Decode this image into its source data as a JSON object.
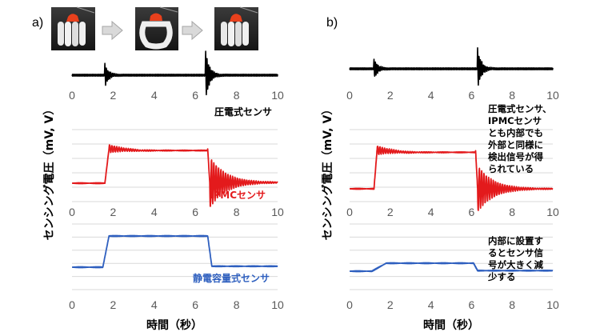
{
  "panels": [
    {
      "letter": "a)"
    },
    {
      "letter": "b)"
    }
  ],
  "ylabel": "センシング電圧（mV, V）",
  "xlabel": "時間（秒）",
  "annotations": {
    "b_top": [
      "圧電式センサ、",
      "IPMCセンサ",
      "とも内部でも",
      "外部と同様に",
      "検出信号が得",
      "られている"
    ],
    "b_bottom": [
      "内部に設置す",
      "るとセンサ信",
      "号が大きく減",
      "少する"
    ]
  },
  "colors": {
    "black": "#000000",
    "red": "#e31a1c",
    "blue": "#2e5fbf",
    "grid": "#d9d9d9",
    "arrow": "#bfbfbf"
  },
  "chart_data": [
    {
      "type": "line",
      "panel": "a",
      "name": "圧電式センサ",
      "color": "#000000",
      "xlim": [
        0,
        10
      ],
      "xticks": [
        0,
        2,
        4,
        6,
        8,
        10
      ],
      "events": [
        {
          "t": 1.6,
          "type": "spike",
          "amp": 1.0
        },
        {
          "t": 6.5,
          "type": "spike",
          "amp": 2.2
        }
      ]
    },
    {
      "type": "line",
      "panel": "a",
      "name": "IPMCセンサ",
      "color": "#e31a1c",
      "xlim": [
        0,
        10
      ],
      "xticks": [
        0,
        2,
        4,
        6,
        8,
        10
      ],
      "baseline": 0.0,
      "high": 1.0,
      "rise": [
        1.6,
        1.8
      ],
      "fall": [
        6.6,
        6.7
      ],
      "ringing": [
        {
          "t": 1.8,
          "amp": 0.12
        },
        {
          "t": 6.7,
          "amp": -0.25
        }
      ],
      "low_after": 0.02
    },
    {
      "type": "line",
      "panel": "a",
      "name": "静電容量式センサ",
      "color": "#2e5fbf",
      "xlim": [
        0,
        10
      ],
      "xticks": [
        0,
        2,
        4,
        6,
        8,
        10
      ],
      "baseline": 0.0,
      "high": 1.0,
      "rise": [
        1.5,
        1.8
      ],
      "fall": [
        6.6,
        6.8
      ],
      "low_after": 0.03
    },
    {
      "type": "line",
      "panel": "b",
      "color": "#000000",
      "xlim": [
        0,
        10
      ],
      "xticks": [
        0,
        2,
        4,
        6,
        8,
        10
      ],
      "events": [
        {
          "t": 1.2,
          "type": "spike",
          "amp": 0.9
        },
        {
          "t": 6.3,
          "type": "spike",
          "amp": 1.8
        }
      ]
    },
    {
      "type": "line",
      "panel": "b",
      "color": "#e31a1c",
      "xlim": [
        0,
        10
      ],
      "xticks": [
        0,
        2,
        4,
        6,
        8,
        10
      ],
      "baseline": 0.0,
      "high": 1.0,
      "rise": [
        1.2,
        1.35
      ],
      "fall": [
        6.2,
        6.3
      ],
      "ringing": [
        {
          "t": 1.35,
          "amp": 0.12
        },
        {
          "t": 6.3,
          "amp": -0.2
        }
      ],
      "low_after": 0.0
    },
    {
      "type": "line",
      "panel": "b",
      "color": "#2e5fbf",
      "xlim": [
        0,
        10
      ],
      "xticks": [
        0,
        2,
        4,
        6,
        8,
        10
      ],
      "baseline": 0.0,
      "high": 0.3,
      "rise": [
        1.1,
        1.8
      ],
      "fall": [
        6.1,
        6.3
      ],
      "low_after": 0.07
    }
  ]
}
